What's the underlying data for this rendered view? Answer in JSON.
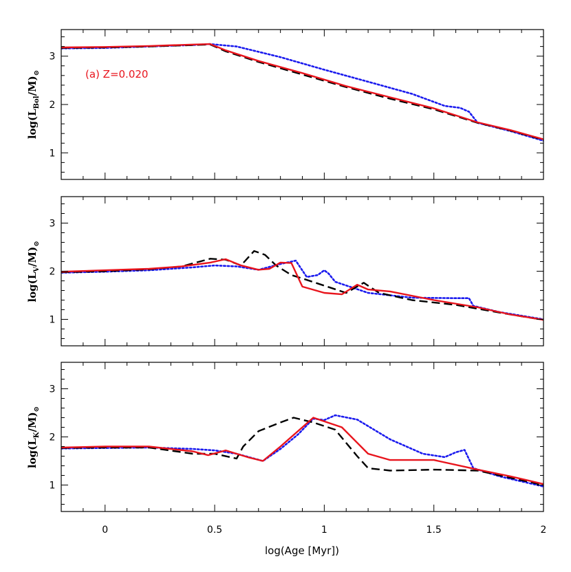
{
  "figure": {
    "xlabel": "log(Age [Myr])"
  },
  "colors": {
    "solid": "#e8141c",
    "dashed": "#000000",
    "dotted": "#1a1aee"
  },
  "chart_data": [
    {
      "type": "line",
      "panel": "top",
      "ylabel": {
        "pre": "log(L",
        "sub": "Bol",
        "mid": "/M)",
        "sun": "⊙"
      },
      "annotation": "(a) Z=0.020",
      "xlim": [
        -0.2,
        2.0
      ],
      "ylim": [
        0.45,
        3.55
      ],
      "xticks": [
        "0",
        "0.5",
        "1",
        "1.5",
        "2"
      ],
      "xtick_values": [
        0,
        0.5,
        1,
        1.5,
        2
      ],
      "yticks": [
        "1",
        "2",
        "3"
      ],
      "ytick_values": [
        1,
        2,
        3
      ],
      "series": [
        {
          "name": "solid",
          "style": "solid",
          "x": [
            -0.2,
            0.0,
            0.2,
            0.4,
            0.48,
            0.55,
            0.7,
            0.9,
            1.1,
            1.3,
            1.5,
            1.7,
            1.85,
            2.0
          ],
          "y": [
            3.18,
            3.19,
            3.21,
            3.24,
            3.25,
            3.12,
            2.9,
            2.65,
            2.38,
            2.15,
            1.92,
            1.63,
            1.47,
            1.28
          ]
        },
        {
          "name": "dashed",
          "style": "dashed",
          "x": [
            -0.2,
            0.0,
            0.2,
            0.4,
            0.48,
            0.55,
            0.7,
            0.9,
            1.1,
            1.3,
            1.5,
            1.7,
            1.85,
            2.0
          ],
          "y": [
            3.17,
            3.18,
            3.2,
            3.23,
            3.24,
            3.1,
            2.88,
            2.62,
            2.36,
            2.12,
            1.9,
            1.62,
            1.46,
            1.27
          ]
        },
        {
          "name": "dotted",
          "style": "dotted",
          "x": [
            -0.2,
            0.0,
            0.2,
            0.4,
            0.48,
            0.6,
            0.8,
            1.0,
            1.2,
            1.4,
            1.55,
            1.62,
            1.66,
            1.7,
            1.85,
            2.0
          ],
          "y": [
            3.16,
            3.17,
            3.2,
            3.23,
            3.25,
            3.2,
            2.98,
            2.72,
            2.47,
            2.22,
            1.97,
            1.93,
            1.85,
            1.62,
            1.45,
            1.25
          ]
        }
      ]
    },
    {
      "type": "line",
      "panel": "middle",
      "ylabel": {
        "pre": "log(L",
        "sub": "V",
        "mid": "/M)",
        "sun": "⊙"
      },
      "xlim": [
        -0.2,
        2.0
      ],
      "ylim": [
        0.45,
        3.55
      ],
      "xticks": [
        "0",
        "0.5",
        "1",
        "1.5",
        "2"
      ],
      "xtick_values": [
        0,
        0.5,
        1,
        1.5,
        2
      ],
      "yticks": [
        "1",
        "2",
        "3"
      ],
      "ytick_values": [
        1,
        2,
        3
      ],
      "series": [
        {
          "name": "solid",
          "style": "solid",
          "x": [
            -0.2,
            0.0,
            0.2,
            0.35,
            0.48,
            0.55,
            0.62,
            0.7,
            0.75,
            0.8,
            0.85,
            0.9,
            1.0,
            1.08,
            1.15,
            1.2,
            1.3,
            1.5,
            1.7,
            1.85,
            2.0
          ],
          "y": [
            1.99,
            2.02,
            2.05,
            2.1,
            2.18,
            2.25,
            2.12,
            2.03,
            2.05,
            2.18,
            2.17,
            1.68,
            1.55,
            1.52,
            1.72,
            1.62,
            1.58,
            1.4,
            1.25,
            1.1,
            0.99
          ]
        },
        {
          "name": "dashed",
          "style": "dashed",
          "x": [
            -0.2,
            0.0,
            0.2,
            0.35,
            0.48,
            0.55,
            0.62,
            0.68,
            0.73,
            0.78,
            0.85,
            0.9,
            1.0,
            1.1,
            1.18,
            1.25,
            1.4,
            1.6,
            1.7,
            1.85,
            2.0
          ],
          "y": [
            1.98,
            2.0,
            2.04,
            2.1,
            2.26,
            2.24,
            2.12,
            2.42,
            2.34,
            2.12,
            1.92,
            1.85,
            1.7,
            1.55,
            1.76,
            1.55,
            1.4,
            1.3,
            1.22,
            1.1,
            0.99
          ]
        },
        {
          "name": "dotted",
          "style": "dotted",
          "x": [
            -0.2,
            0.0,
            0.2,
            0.4,
            0.5,
            0.6,
            0.7,
            0.8,
            0.87,
            0.92,
            0.97,
            1.0,
            1.02,
            1.05,
            1.2,
            1.4,
            1.6,
            1.66,
            1.68,
            1.8,
            2.0
          ],
          "y": [
            1.97,
            1.99,
            2.02,
            2.08,
            2.12,
            2.1,
            2.03,
            2.15,
            2.22,
            1.88,
            1.92,
            2.02,
            1.95,
            1.78,
            1.55,
            1.45,
            1.44,
            1.44,
            1.28,
            1.15,
            1.0
          ]
        }
      ]
    },
    {
      "type": "line",
      "panel": "bottom",
      "ylabel": {
        "pre": "log(L",
        "sub": "K",
        "mid": "/M)",
        "sun": "⊙"
      },
      "xlim": [
        -0.2,
        2.0
      ],
      "ylim": [
        0.45,
        3.55
      ],
      "xticks": [
        "0",
        "0.5",
        "1",
        "1.5",
        "2"
      ],
      "xtick_values": [
        0,
        0.5,
        1,
        1.5,
        2
      ],
      "yticks": [
        "1",
        "2",
        "3"
      ],
      "ytick_values": [
        1,
        2,
        3
      ],
      "series": [
        {
          "name": "solid",
          "style": "solid",
          "x": [
            -0.2,
            0.0,
            0.2,
            0.4,
            0.47,
            0.55,
            0.65,
            0.72,
            0.8,
            0.9,
            0.95,
            1.08,
            1.2,
            1.3,
            1.5,
            1.7,
            1.85,
            2.0
          ],
          "y": [
            1.78,
            1.8,
            1.8,
            1.7,
            1.62,
            1.72,
            1.58,
            1.5,
            1.8,
            2.2,
            2.4,
            2.2,
            1.65,
            1.52,
            1.52,
            1.32,
            1.18,
            1.02
          ]
        },
        {
          "name": "dashed",
          "style": "dashed",
          "x": [
            -0.2,
            0.0,
            0.2,
            0.4,
            0.5,
            0.6,
            0.63,
            0.7,
            0.8,
            0.86,
            0.95,
            1.05,
            1.15,
            1.2,
            1.3,
            1.5,
            1.7,
            1.85,
            2.0
          ],
          "y": [
            1.77,
            1.78,
            1.78,
            1.65,
            1.65,
            1.55,
            1.8,
            2.12,
            2.3,
            2.4,
            2.3,
            2.15,
            1.6,
            1.35,
            1.3,
            1.32,
            1.3,
            1.15,
            1.0
          ]
        },
        {
          "name": "dotted",
          "style": "dotted",
          "x": [
            -0.2,
            0.0,
            0.2,
            0.4,
            0.5,
            0.6,
            0.72,
            0.8,
            0.88,
            0.95,
            1.0,
            1.05,
            1.15,
            1.3,
            1.45,
            1.55,
            1.6,
            1.64,
            1.68,
            1.8,
            2.0
          ],
          "y": [
            1.76,
            1.77,
            1.78,
            1.75,
            1.72,
            1.65,
            1.5,
            1.75,
            2.05,
            2.38,
            2.35,
            2.45,
            2.36,
            1.95,
            1.65,
            1.58,
            1.68,
            1.73,
            1.35,
            1.18,
            0.97
          ]
        }
      ]
    }
  ]
}
